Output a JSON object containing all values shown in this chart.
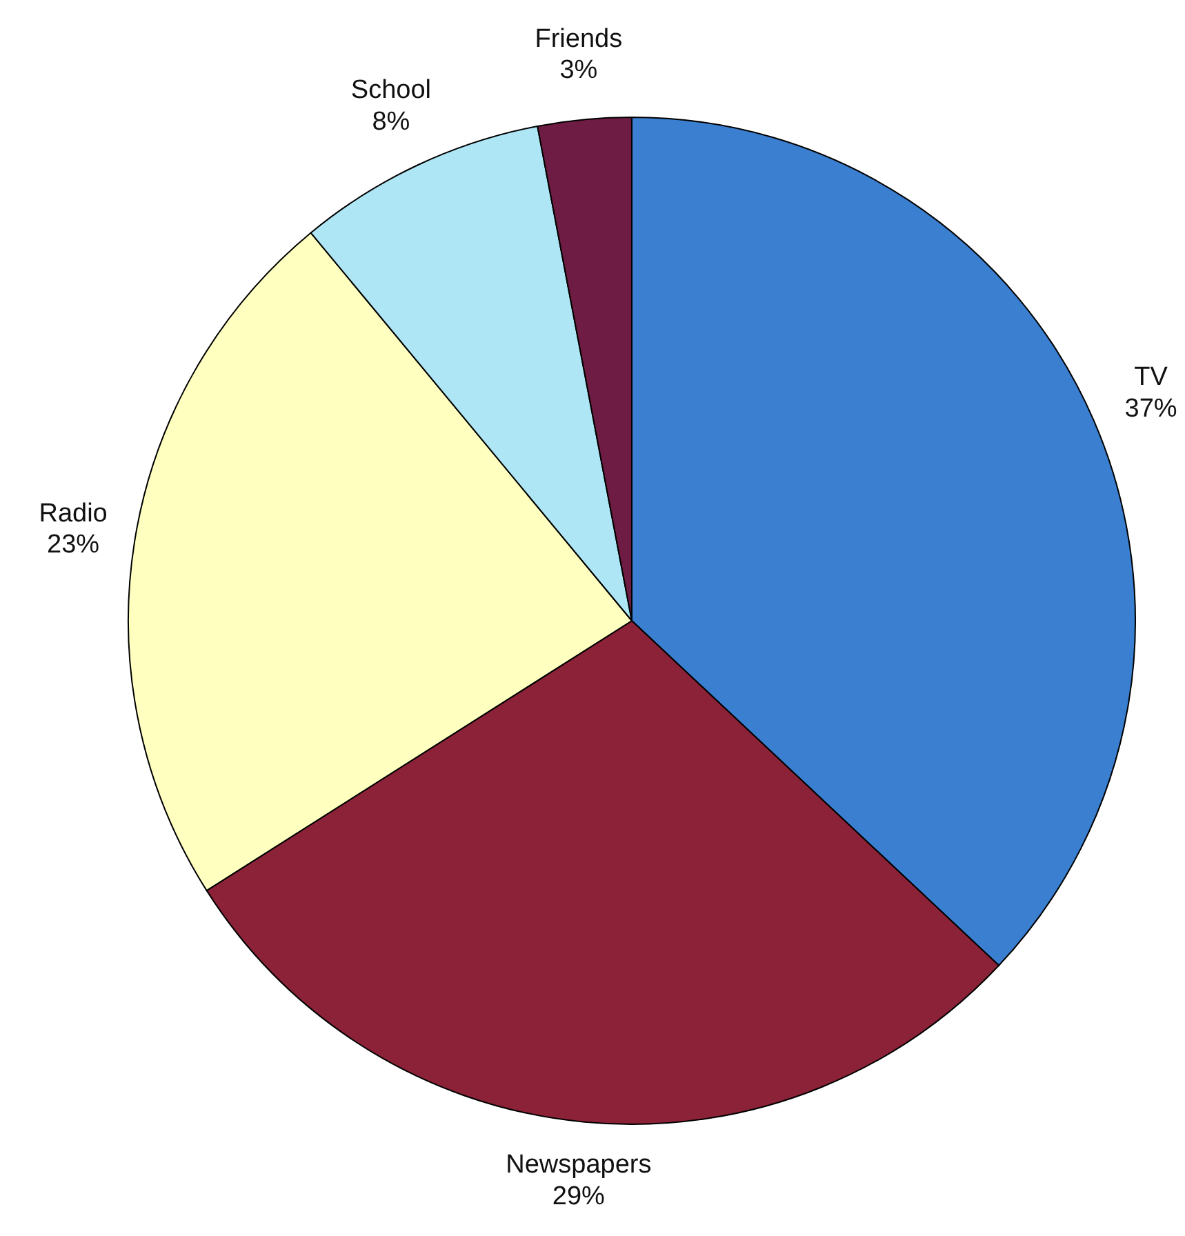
{
  "chart_data": {
    "type": "pie",
    "categories": [
      "TV",
      "Newspapers",
      "Radio",
      "School",
      "Friends"
    ],
    "values": [
      37,
      29,
      23,
      8,
      3
    ],
    "colors": [
      "#3a7fd0",
      "#8b2238",
      "#ffffc0",
      "#aee6f5",
      "#6e1c44"
    ],
    "value_labels": [
      "37%",
      "29%",
      "23%",
      "8%",
      "3%"
    ]
  }
}
